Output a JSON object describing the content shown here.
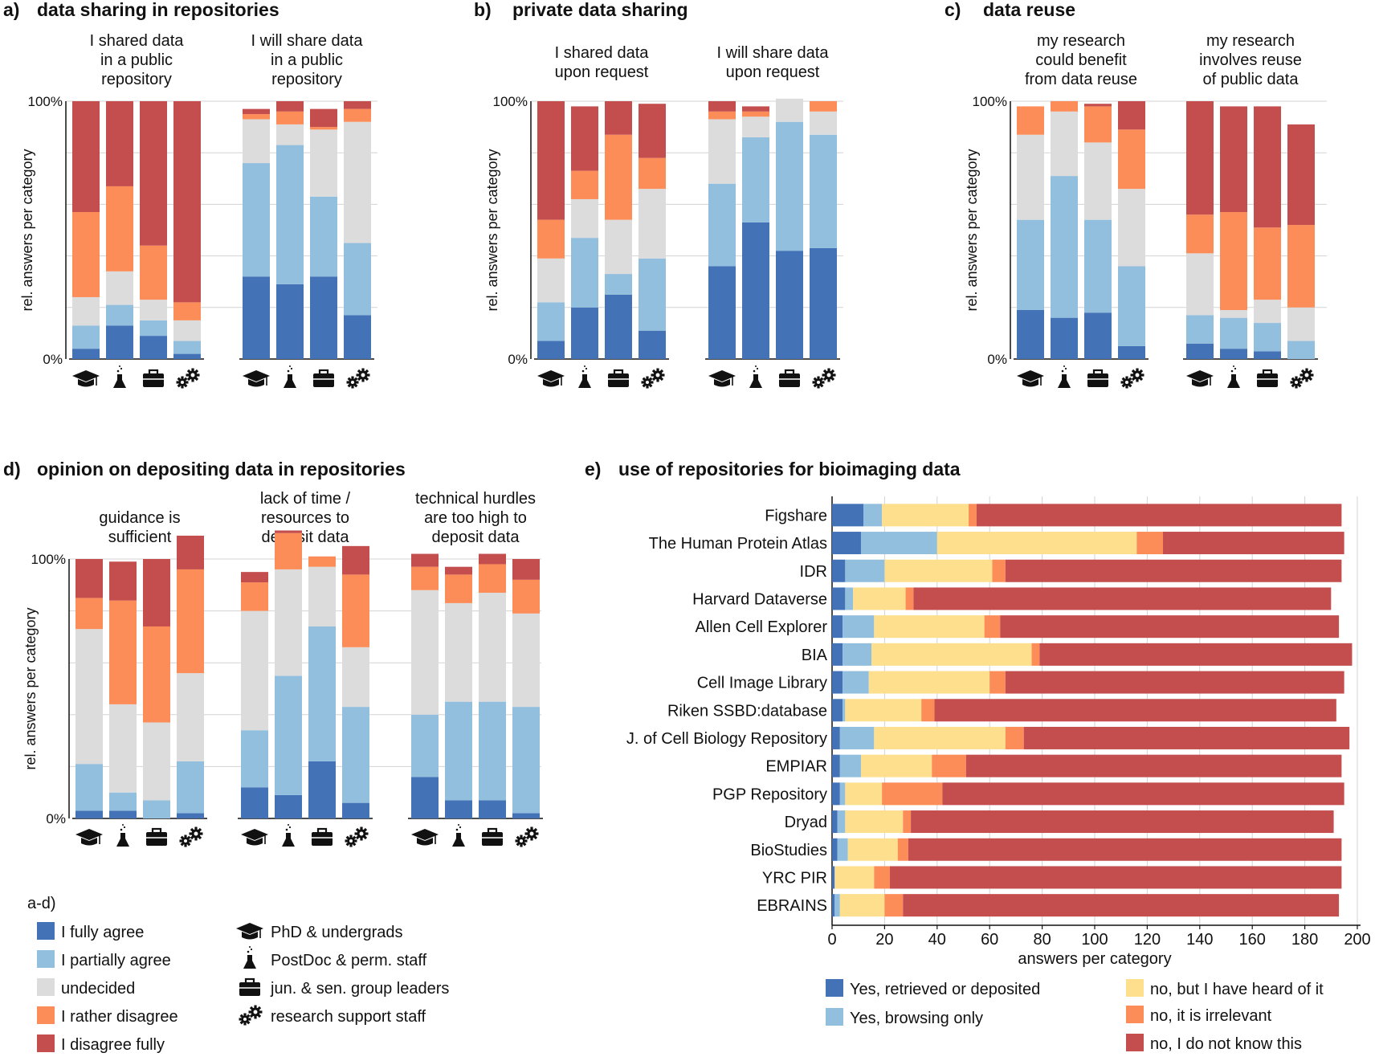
{
  "colors": {
    "agree_full": "#4472b7",
    "agree_part": "#93bfde",
    "undecided": "#dcdcdc",
    "disagree_rather": "#fc8d59",
    "disagree_full": "#c44e4e",
    "yes_retrieved": "#4472b7",
    "yes_browsing": "#93bfde",
    "heard": "#fddf8e",
    "irrelevant": "#fc8d59",
    "unknown": "#c44e4e"
  },
  "panels": {
    "a": {
      "letter": "a)",
      "title": "data sharing in repositories"
    },
    "b": {
      "letter": "b)",
      "title": "private data sharing"
    },
    "c": {
      "letter": "c)",
      "title": "data reuse"
    },
    "d": {
      "letter": "d)",
      "title": "opinion on depositing data in repositories"
    },
    "e": {
      "letter": "e)",
      "title": "use of repositories for bioimaging data"
    }
  },
  "legend": {
    "ad_header": "a-d)",
    "agree": [
      {
        "label": "I fully agree",
        "color_key": "agree_full"
      },
      {
        "label": "I partially agree",
        "color_key": "agree_part"
      },
      {
        "label": "undecided",
        "color_key": "undecided"
      },
      {
        "label": "I rather disagree",
        "color_key": "disagree_rather"
      },
      {
        "label": "I disagree fully",
        "color_key": "disagree_full"
      }
    ],
    "groups": [
      {
        "label": "PhD & undergrads",
        "icon": "graduation-cap-icon"
      },
      {
        "label": "PostDoc & perm. staff",
        "icon": "flask-icon"
      },
      {
        "label": "jun. & sen. group leaders",
        "icon": "briefcase-icon"
      },
      {
        "label": "research support staff",
        "icon": "gears-icon"
      }
    ],
    "repo": [
      {
        "label": "Yes, retrieved or deposited",
        "color_key": "yes_retrieved"
      },
      {
        "label": "Yes, browsing only",
        "color_key": "yes_browsing"
      },
      {
        "label": "no, but I have heard of it",
        "color_key": "heard"
      },
      {
        "label": "no, it is irrelevant",
        "color_key": "irrelevant"
      },
      {
        "label": "no, I do not know this",
        "color_key": "unknown"
      }
    ]
  },
  "chart_data": [
    {
      "panel": "a",
      "type": "bar",
      "stacked": true,
      "ylabel": "rel. answers per category",
      "yticks": [
        "0%",
        "100%"
      ],
      "ylim": [
        0,
        100
      ],
      "categories": [
        "PhD & undergrads",
        "PostDoc & perm. staff",
        "jun. & sen. group leaders",
        "research support staff"
      ],
      "series_order": [
        "I fully agree",
        "I partially agree",
        "undecided",
        "I rather disagree",
        "I disagree fully"
      ],
      "groups": [
        {
          "title": [
            "I shared data",
            "in a public",
            "repository"
          ],
          "bars": [
            [
              4,
              9,
              11,
              33,
              43
            ],
            [
              13,
              8,
              13,
              33,
              33
            ],
            [
              9,
              6,
              8,
              21,
              56
            ],
            [
              2,
              5,
              8,
              7,
              78
            ]
          ]
        },
        {
          "title": [
            "I will share data",
            "in a public",
            "repository"
          ],
          "bars": [
            [
              32,
              44,
              17,
              2,
              2
            ],
            [
              29,
              54,
              8,
              5,
              4
            ],
            [
              32,
              31,
              26,
              1,
              7
            ],
            [
              17,
              28,
              47,
              5,
              3
            ]
          ]
        }
      ]
    },
    {
      "panel": "b",
      "type": "bar",
      "stacked": true,
      "ylabel": "rel. answers per category",
      "yticks": [
        "0%",
        "100%"
      ],
      "ylim": [
        0,
        100
      ],
      "categories": [
        "PhD & undergrads",
        "PostDoc & perm. staff",
        "jun. & sen. group leaders",
        "research support staff"
      ],
      "series_order": [
        "I fully agree",
        "I partially agree",
        "undecided",
        "I rather disagree",
        "I disagree fully"
      ],
      "groups": [
        {
          "title": [
            "I shared data",
            "upon request"
          ],
          "bars": [
            [
              7,
              15,
              17,
              15,
              46
            ],
            [
              20,
              27,
              15,
              11,
              25
            ],
            [
              25,
              8,
              21,
              33,
              13
            ],
            [
              11,
              28,
              27,
              12,
              21
            ]
          ]
        },
        {
          "title": [
            "I will share data",
            "upon request"
          ],
          "bars": [
            [
              36,
              32,
              25,
              3,
              4
            ],
            [
              53,
              33,
              8,
              2,
              2
            ],
            [
              42,
              50,
              9,
              0,
              0
            ],
            [
              43,
              44,
              9,
              4,
              0
            ]
          ]
        }
      ]
    },
    {
      "panel": "c",
      "type": "bar",
      "stacked": true,
      "ylabel": "rel. answers per category",
      "yticks": [
        "0%",
        "100%"
      ],
      "ylim": [
        0,
        100
      ],
      "categories": [
        "PhD & undergrads",
        "PostDoc & perm. staff",
        "jun. & sen. group leaders",
        "research support staff"
      ],
      "series_order": [
        "I fully agree",
        "I partially agree",
        "undecided",
        "I rather disagree",
        "I disagree fully"
      ],
      "groups": [
        {
          "title": [
            "my research",
            "could benefit",
            "from data reuse"
          ],
          "bars": [
            [
              19,
              35,
              33,
              11,
              0
            ],
            [
              16,
              55,
              25,
              4,
              0
            ],
            [
              18,
              36,
              30,
              14,
              1
            ],
            [
              5,
              31,
              30,
              23,
              11
            ]
          ]
        },
        {
          "title": [
            "my research",
            "involves reuse",
            "of public data"
          ],
          "bars": [
            [
              6,
              11,
              24,
              15,
              44
            ],
            [
              4,
              12,
              3,
              38,
              41
            ],
            [
              3,
              11,
              9,
              28,
              47
            ],
            [
              0,
              7,
              13,
              32,
              39
            ]
          ]
        }
      ]
    },
    {
      "panel": "d",
      "type": "bar",
      "stacked": true,
      "ylabel": "rel. answers per category",
      "yticks": [
        "0%",
        "100%"
      ],
      "ylim": [
        0,
        100
      ],
      "categories": [
        "PhD & undergrads",
        "PostDoc & perm. staff",
        "jun. & sen. group leaders",
        "research support staff"
      ],
      "series_order": [
        "I fully agree",
        "I partially agree",
        "undecided",
        "I rather disagree",
        "I disagree fully"
      ],
      "groups": [
        {
          "title": [
            "guidance is",
            "sufficient"
          ],
          "bars": [
            [
              3,
              18,
              52,
              12,
              15
            ],
            [
              3,
              7,
              34,
              40,
              15
            ],
            [
              0,
              7,
              30,
              37,
              26
            ],
            [
              2,
              20,
              34,
              40,
              13
            ]
          ]
        },
        {
          "title": [
            "lack of time /",
            "resources to",
            "deposit data"
          ],
          "bars": [
            [
              12,
              22,
              46,
              11,
              4
            ],
            [
              9,
              46,
              41,
              14,
              1
            ],
            [
              22,
              52,
              23,
              4,
              0
            ],
            [
              6,
              37,
              23,
              28,
              11
            ]
          ]
        },
        {
          "title": [
            "technical hurdles",
            "are too high to",
            "deposit data"
          ],
          "bars": [
            [
              16,
              24,
              48,
              9,
              5
            ],
            [
              7,
              38,
              38,
              11,
              3
            ],
            [
              7,
              38,
              42,
              11,
              4
            ],
            [
              2,
              41,
              36,
              13,
              8
            ]
          ]
        }
      ]
    },
    {
      "panel": "e",
      "type": "bar",
      "orientation": "horizontal",
      "stacked": true,
      "xlabel": "answers per category",
      "xlim": [
        0,
        200
      ],
      "xticks": [
        0,
        20,
        40,
        60,
        80,
        100,
        120,
        140,
        160,
        180,
        200
      ],
      "categories": [
        "Figshare",
        "The Human Protein Atlas",
        "IDR",
        "Harvard Dataverse",
        "Allen Cell Explorer",
        "BIA",
        "Cell Image Library",
        "Riken SSBD:database",
        "J. of Cell Biology Repository",
        "EMPIAR",
        "PGP Repository",
        "Dryad",
        "BioStudies",
        "YRC PIR",
        "EBRAINS"
      ],
      "series": [
        {
          "name": "Yes, retrieved or deposited",
          "values": [
            12,
            11,
            5,
            5,
            4,
            4,
            4,
            4,
            3,
            3,
            3,
            2,
            2,
            1,
            1
          ]
        },
        {
          "name": "Yes, browsing only",
          "values": [
            7,
            29,
            15,
            3,
            12,
            11,
            10,
            1,
            13,
            8,
            2,
            3,
            4,
            0,
            2
          ]
        },
        {
          "name": "no, but I have heard of it",
          "values": [
            33,
            76,
            41,
            20,
            42,
            61,
            46,
            29,
            50,
            27,
            14,
            22,
            19,
            15,
            17
          ]
        },
        {
          "name": "no, it is irrelevant",
          "values": [
            3,
            10,
            5,
            3,
            6,
            3,
            6,
            5,
            7,
            13,
            23,
            3,
            4,
            6,
            7
          ]
        },
        {
          "name": "no, I do not know this",
          "values": [
            139,
            69,
            128,
            159,
            129,
            119,
            129,
            153,
            124,
            143,
            153,
            161,
            165,
            172,
            166
          ]
        }
      ]
    }
  ]
}
